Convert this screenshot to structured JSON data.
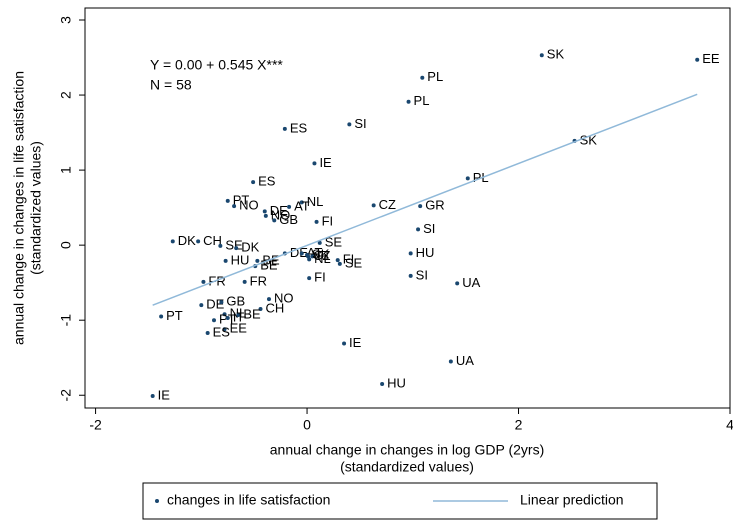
{
  "chart_data": {
    "type": "scatter",
    "annotations": [
      "Y = 0.00 + 0.545 X***",
      "N = 58"
    ],
    "x_label": [
      "annual change in changes in log GDP (2yrs)",
      "(standardized values)"
    ],
    "y_label": [
      "annual change in changes in life satisfaction",
      "(standardized values)"
    ],
    "xlim": [
      -2.1,
      4.0
    ],
    "ylim": [
      -2.17,
      3.16
    ],
    "xticks": [
      -2,
      0,
      2,
      4
    ],
    "yticks": [
      -2,
      -1,
      0,
      1,
      2,
      3
    ],
    "series": [
      {
        "name": "changes in life satisfaction",
        "color": "#1a476f",
        "labels": [
          "SK",
          "EE",
          "PL",
          "PL",
          "SI",
          "ES",
          "SK",
          "IE",
          "PL",
          "ES",
          "PT",
          "NO",
          "NL",
          "DE",
          "AT",
          "NO",
          "GB",
          "FI",
          "CZ",
          "GR",
          "SI",
          "DK",
          "CH",
          "SE",
          "DK",
          "SE",
          "HU",
          "DE",
          "AT",
          "CZ",
          "NL",
          "FI",
          "HU",
          "BE",
          "BE",
          "FI",
          "SE",
          "SI",
          "FI",
          "UA",
          "FR",
          "FR",
          "DE",
          "GB",
          "NO",
          "CH",
          "NL",
          "PT",
          "BE",
          "IT",
          "EE",
          "ES",
          "PT",
          "IE",
          "UA",
          "HU",
          "IE",
          "SK"
        ],
        "x": [
          2.22,
          3.69,
          1.09,
          0.96,
          0.4,
          -0.21,
          2.53,
          0.07,
          1.52,
          -0.51,
          -0.75,
          -0.69,
          -0.05,
          -0.4,
          -0.17,
          -0.39,
          -0.31,
          0.09,
          0.63,
          1.07,
          1.05,
          -1.27,
          -1.03,
          -0.82,
          -0.67,
          0.12,
          0.98,
          -0.21,
          -0.05,
          0.01,
          0.02,
          0.05,
          -0.77,
          -0.47,
          -0.49,
          0.29,
          0.31,
          0.98,
          0.02,
          1.42,
          -0.98,
          -0.59,
          -1.0,
          -0.81,
          -0.36,
          -0.44,
          -0.78,
          -0.88,
          -0.65,
          -0.75,
          -0.78,
          -0.94,
          -1.38,
          0.35,
          1.36,
          0.71,
          -1.46,
          0.0
        ],
        "values": [
          2.53,
          2.47,
          2.23,
          1.91,
          1.61,
          1.55,
          1.39,
          1.09,
          0.89,
          0.84,
          0.59,
          0.52,
          0.57,
          0.45,
          0.51,
          0.39,
          0.33,
          0.31,
          0.53,
          0.52,
          0.21,
          0.05,
          0.05,
          -0.01,
          -0.04,
          0.03,
          -0.11,
          -0.11,
          -0.11,
          -0.15,
          -0.19,
          -0.15,
          -0.21,
          -0.21,
          -0.28,
          -0.2,
          -0.25,
          -0.41,
          -0.44,
          -0.51,
          -0.49,
          -0.49,
          -0.8,
          -0.76,
          -0.72,
          -0.85,
          -0.92,
          -1.0,
          -0.93,
          -0.97,
          -1.12,
          -1.17,
          -0.95,
          -1.31,
          -1.55,
          -1.85,
          -2.01,
          -0.13
        ]
      },
      {
        "name": "Linear prediction",
        "color": "#90b9d9",
        "type": "line",
        "x": [
          -1.46,
          3.69
        ],
        "values": [
          -0.8,
          2.01
        ]
      }
    ]
  }
}
